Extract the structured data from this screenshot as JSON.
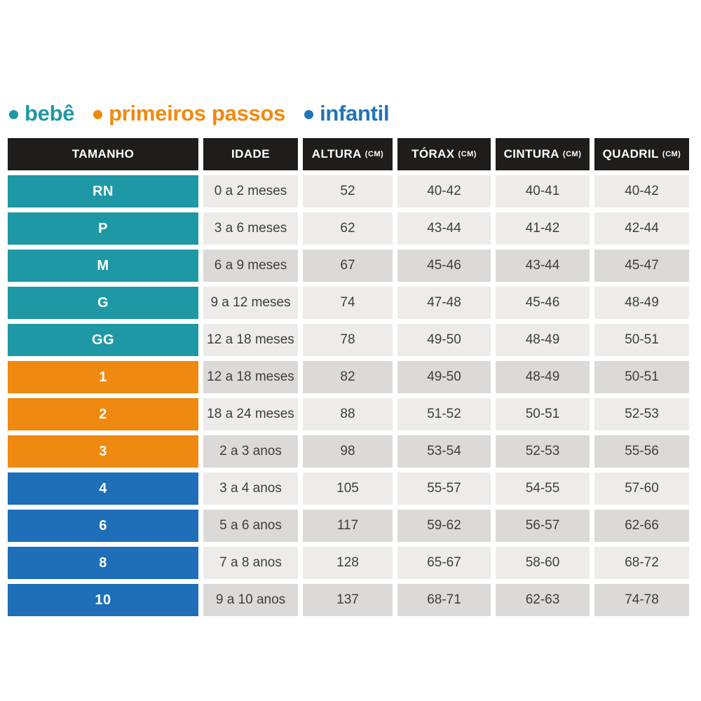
{
  "legend": {
    "items": [
      {
        "label": "bebê",
        "color": "#1F98A6"
      },
      {
        "label": "primeiros passos",
        "color": "#F0890F"
      },
      {
        "label": "infantil",
        "color": "#2173BB"
      }
    ]
  },
  "table": {
    "header": {
      "bg": "#1E1D1B",
      "text_color": "#FFFFFF",
      "columns": [
        {
          "label": "TAMANHO",
          "unit": ""
        },
        {
          "label": "IDADE",
          "unit": ""
        },
        {
          "label": "ALTURA",
          "unit": "(CM)"
        },
        {
          "label": "TÓRAX",
          "unit": "(CM)"
        },
        {
          "label": "CINTURA",
          "unit": "(CM)"
        },
        {
          "label": "QUADRIL",
          "unit": "(CM)"
        }
      ]
    },
    "group_colors": {
      "bebe": "#1F98A6",
      "primeiros-passos": "#F0890F",
      "infantil": "#1E6FB8"
    },
    "row_backgrounds": {
      "light": "#EDECEA",
      "dark": "#DBDAD8"
    },
    "text_color": "#3F3E3D",
    "rows": [
      {
        "size": "RN",
        "group": "bebe",
        "idade": "0 a 2 meses",
        "altura": "52",
        "torax": "40-42",
        "cintura": "40-41",
        "quadril": "40-42",
        "shaded": false
      },
      {
        "size": "P",
        "group": "bebe",
        "idade": "3 a 6 meses",
        "altura": "62",
        "torax": "43-44",
        "cintura": "41-42",
        "quadril": "42-44",
        "shaded": false
      },
      {
        "size": "M",
        "group": "bebe",
        "idade": "6 a 9 meses",
        "altura": "67",
        "torax": "45-46",
        "cintura": "43-44",
        "quadril": "45-47",
        "shaded": true
      },
      {
        "size": "G",
        "group": "bebe",
        "idade": "9 a 12 meses",
        "altura": "74",
        "torax": "47-48",
        "cintura": "45-46",
        "quadril": "48-49",
        "shaded": false
      },
      {
        "size": "GG",
        "group": "bebe",
        "idade": "12 a 18 meses",
        "altura": "78",
        "torax": "49-50",
        "cintura": "48-49",
        "quadril": "50-51",
        "shaded": false
      },
      {
        "size": "1",
        "group": "primeiros-passos",
        "idade": "12 a 18 meses",
        "altura": "82",
        "torax": "49-50",
        "cintura": "48-49",
        "quadril": "50-51",
        "shaded": true
      },
      {
        "size": "2",
        "group": "primeiros-passos",
        "idade": "18 a 24 meses",
        "altura": "88",
        "torax": "51-52",
        "cintura": "50-51",
        "quadril": "52-53",
        "shaded": false
      },
      {
        "size": "3",
        "group": "primeiros-passos",
        "idade": "2 a 3 anos",
        "altura": "98",
        "torax": "53-54",
        "cintura": "52-53",
        "quadril": "55-56",
        "shaded": true
      },
      {
        "size": "4",
        "group": "infantil",
        "idade": "3 a 4 anos",
        "altura": "105",
        "torax": "55-57",
        "cintura": "54-55",
        "quadril": "57-60",
        "shaded": false
      },
      {
        "size": "6",
        "group": "infantil",
        "idade": "5 a 6 anos",
        "altura": "117",
        "torax": "59-62",
        "cintura": "56-57",
        "quadril": "62-66",
        "shaded": true
      },
      {
        "size": "8",
        "group": "infantil",
        "idade": "7 a 8 anos",
        "altura": "128",
        "torax": "65-67",
        "cintura": "58-60",
        "quadril": "68-72",
        "shaded": false
      },
      {
        "size": "10",
        "group": "infantil",
        "idade": "9 a 10 anos",
        "altura": "137",
        "torax": "68-71",
        "cintura": "62-63",
        "quadril": "74-78",
        "shaded": true
      }
    ]
  },
  "chart_data": {
    "type": "table",
    "legend": [
      "bebê",
      "primeiros passos",
      "infantil"
    ],
    "columns": [
      "TAMANHO",
      "IDADE",
      "ALTURA (CM)",
      "TÓRAX (CM)",
      "CINTURA (CM)",
      "QUADRIL (CM)"
    ],
    "rows": [
      [
        "RN",
        "0 a 2 meses",
        "52",
        "40-42",
        "40-41",
        "40-42"
      ],
      [
        "P",
        "3 a 6 meses",
        "62",
        "43-44",
        "41-42",
        "42-44"
      ],
      [
        "M",
        "6 a 9 meses",
        "67",
        "45-46",
        "43-44",
        "45-47"
      ],
      [
        "G",
        "9 a 12 meses",
        "74",
        "47-48",
        "45-46",
        "48-49"
      ],
      [
        "GG",
        "12 a 18 meses",
        "78",
        "49-50",
        "48-49",
        "50-51"
      ],
      [
        "1",
        "12 a 18 meses",
        "82",
        "49-50",
        "48-49",
        "50-51"
      ],
      [
        "2",
        "18 a 24 meses",
        "88",
        "51-52",
        "50-51",
        "52-53"
      ],
      [
        "3",
        "2 a 3 anos",
        "98",
        "53-54",
        "52-53",
        "55-56"
      ],
      [
        "4",
        "3 a 4 anos",
        "105",
        "55-57",
        "54-55",
        "57-60"
      ],
      [
        "6",
        "5 a 6 anos",
        "117",
        "59-62",
        "56-57",
        "62-66"
      ],
      [
        "8",
        "7 a 8 anos",
        "128",
        "65-67",
        "58-60",
        "68-72"
      ],
      [
        "10",
        "9 a 10 anos",
        "137",
        "68-71",
        "62-63",
        "74-78"
      ]
    ],
    "row_group": [
      "bebê",
      "bebê",
      "bebê",
      "bebê",
      "bebê",
      "primeiros passos",
      "primeiros passos",
      "primeiros passos",
      "infantil",
      "infantil",
      "infantil",
      "infantil"
    ]
  }
}
